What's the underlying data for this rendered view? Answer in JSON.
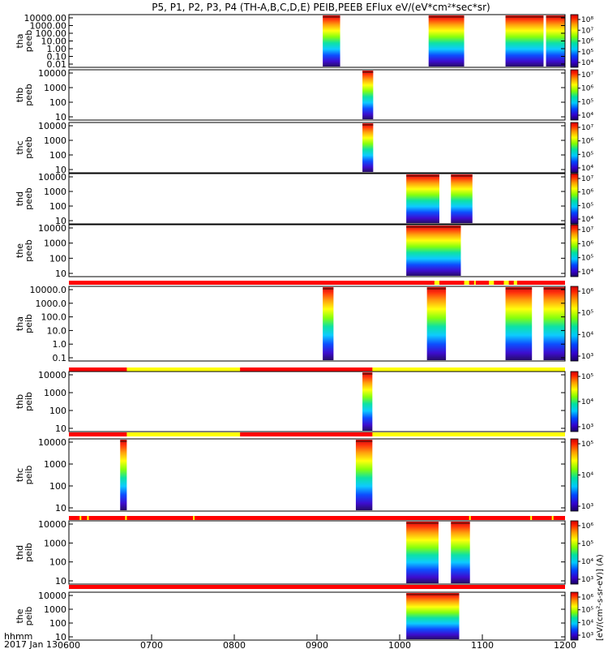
{
  "chart_data": {
    "type": "heatmap",
    "title": "P5, P1, P2, P3, P4 (TH-A,B,C,D,E) PEIB,PEEB EFlux eV/(eV*cm²*sec*sr)",
    "x_axis": {
      "ticks": [
        "0600",
        "0700",
        "0800",
        "0900",
        "1000",
        "1100",
        "1200"
      ],
      "range_hours": [
        6,
        12
      ],
      "label_top": "hhmm",
      "label_bottom": "2017 Jan 13"
    },
    "colorbar_label": "[eV/(cm²-s-sr-eV)]",
    "colorbar_label_full": "[eV/(cm²-s-sr-eV)] (A)",
    "colors": {
      "mode_red": "#ff0000",
      "mode_yellow": "#ffff00"
    },
    "panels": [
      {
        "label": "tha\npeeb",
        "label_lines": [
          "tha",
          "peeb"
        ],
        "yticks": [
          "10000.00",
          "1000.00",
          "100.00",
          "10.00",
          "1.00",
          "0.10",
          "0.01"
        ],
        "yrange_log": [
          -2,
          4.3
        ],
        "colorbar_ticks": [
          "10⁴",
          "10⁵",
          "10⁶",
          "10⁷",
          "10⁸"
        ],
        "colorbar_range_log": [
          3.5,
          8
        ],
        "intervals": [
          [
            9.07,
            9.28
          ],
          [
            10.35,
            10.78
          ],
          [
            11.28,
            11.74
          ],
          [
            11.77,
            12.0
          ]
        ],
        "mode_bar": null
      },
      {
        "label": "thb\npeeb",
        "label_lines": [
          "thb",
          "peeb"
        ],
        "yticks": [
          "10000",
          "1000",
          "100",
          "10"
        ],
        "yrange_log": [
          0.8,
          4.4
        ],
        "colorbar_ticks": [
          "10⁴",
          "10⁵",
          "10⁶",
          "10⁷"
        ],
        "colorbar_range_log": [
          3.5,
          7.6
        ],
        "intervals": [
          [
            9.55,
            9.68
          ]
        ],
        "mode_bar": null
      },
      {
        "label": "thc\npeeb",
        "label_lines": [
          "thc",
          "peeb"
        ],
        "yticks": [
          "10000",
          "1000",
          "100",
          "10"
        ],
        "yrange_log": [
          0.7,
          4.4
        ],
        "colorbar_ticks": [
          "10⁴",
          "10⁵",
          "10⁶",
          "10⁷"
        ],
        "colorbar_range_log": [
          3.5,
          7.6
        ],
        "intervals": [
          [
            9.55,
            9.68
          ]
        ],
        "mode_bar": null
      },
      {
        "label": "thd\npeeb",
        "label_lines": [
          "thd",
          "peeb"
        ],
        "yticks": [
          "10000",
          "1000",
          "100",
          "10"
        ],
        "yrange_log": [
          0.8,
          4.4
        ],
        "colorbar_ticks": [
          "10⁴",
          "10⁵",
          "10⁶",
          "10⁷"
        ],
        "colorbar_range_log": [
          3.5,
          7.6
        ],
        "intervals": [
          [
            10.08,
            10.48
          ],
          [
            10.62,
            10.88
          ]
        ],
        "mode_bar": null
      },
      {
        "label": "the\npeeb",
        "label_lines": [
          "the",
          "peeb"
        ],
        "yticks": [
          "10000",
          "1000",
          "100",
          "10"
        ],
        "yrange_log": [
          0.7,
          4.4
        ],
        "colorbar_ticks": [
          "10⁴",
          "10⁵",
          "10⁶",
          "10⁷"
        ],
        "colorbar_range_log": [
          3.5,
          7.6
        ],
        "intervals": [
          [
            10.08,
            10.74
          ]
        ],
        "mode_bar": {
          "base": "red",
          "segments": [
            [
              10.42,
              10.48
            ],
            [
              10.78,
              10.84
            ],
            [
              10.9,
              10.92
            ],
            [
              11.08,
              11.14
            ],
            [
              11.26,
              11.32
            ],
            [
              11.38,
              11.42
            ]
          ]
        }
      },
      {
        "label": "tha\npeib",
        "label_lines": [
          "tha",
          "peib"
        ],
        "yticks": [
          "10000.0",
          "1000.0",
          "100.0",
          "10.0",
          "1.0",
          "0.1"
        ],
        "yrange_log": [
          -1,
          4.2
        ],
        "colorbar_ticks": [
          "10³",
          "10⁴",
          "10⁵",
          "10⁶"
        ],
        "colorbar_range_log": [
          2.5,
          6.5
        ],
        "intervals": [
          [
            9.07,
            9.2
          ],
          [
            10.33,
            10.56
          ],
          [
            11.28,
            11.6
          ],
          [
            11.74,
            12.0
          ]
        ],
        "mode_bar": {
          "base": "red",
          "segments": [
            [
              6.7,
              8.07
            ],
            [
              9.67,
              12.0
            ]
          ]
        }
      },
      {
        "label": "thb\npeib",
        "label_lines": [
          "thb",
          "peib"
        ],
        "yticks": [
          "10000",
          "1000",
          "100",
          "10"
        ],
        "yrange_log": [
          0.6,
          4.5
        ],
        "colorbar_ticks": [
          "10³",
          "10⁴",
          "10⁵"
        ],
        "colorbar_range_log": [
          2.8,
          5.8
        ],
        "intervals": [
          [
            9.55,
            9.67
          ]
        ],
        "mode_bar": {
          "base": "red",
          "segments": [
            [
              6.7,
              8.07
            ],
            [
              9.67,
              12.0
            ]
          ]
        }
      },
      {
        "label": "thc\npeib",
        "label_lines": [
          "thc",
          "peib"
        ],
        "yticks": [
          "10000",
          "1000",
          "100",
          "10"
        ],
        "yrange_log": [
          0.6,
          4.5
        ],
        "colorbar_ticks": [
          "10³",
          "10⁴",
          "10⁵"
        ],
        "colorbar_range_log": [
          2.8,
          5.8
        ],
        "intervals": [
          [
            6.62,
            6.7
          ],
          [
            9.47,
            9.67
          ]
        ],
        "mode_bar": {
          "base": "red",
          "segments": [
            [
              6.13,
              6.15
            ],
            [
              6.22,
              6.24
            ],
            [
              6.68,
              6.7
            ],
            [
              7.5,
              7.52
            ],
            [
              10.84,
              10.86
            ],
            [
              11.58,
              11.6
            ],
            [
              11.84,
              11.86
            ]
          ]
        }
      },
      {
        "label": "thd\npeib",
        "label_lines": [
          "thd",
          "peib"
        ],
        "yticks": [
          "10000",
          "1000",
          "100",
          "10"
        ],
        "yrange_log": [
          0.6,
          4.5
        ],
        "colorbar_ticks": [
          "10³",
          "10⁴",
          "10⁵",
          "10⁶"
        ],
        "colorbar_range_log": [
          2.8,
          6.4
        ],
        "intervals": [
          [
            10.08,
            10.47
          ],
          [
            10.62,
            10.85
          ]
        ],
        "mode_bar": {
          "base": "red",
          "segments": []
        }
      },
      {
        "label": "the\npeib",
        "label_lines": [
          "the",
          "peib"
        ],
        "yticks": [
          "10000",
          "1000",
          "100",
          "10"
        ],
        "yrange_log": [
          0.6,
          4.5
        ],
        "colorbar_ticks": [
          "10³",
          "10⁴",
          "10⁵",
          "10⁶"
        ],
        "colorbar_range_log": [
          2.8,
          6.4
        ],
        "intervals": [
          [
            10.08,
            10.72
          ]
        ],
        "mode_bar": null
      }
    ]
  }
}
